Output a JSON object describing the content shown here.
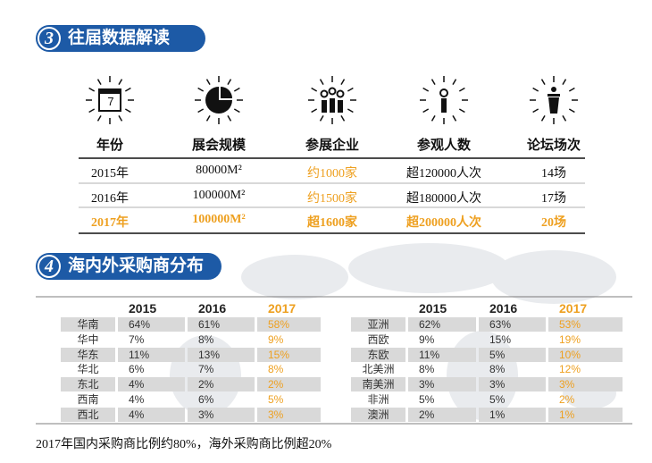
{
  "section3": {
    "number": "3",
    "title": "往届数据解读",
    "icon_day": "7",
    "columns": [
      "年份",
      "展会规模",
      "参展企业",
      "参观人数",
      "论坛场次"
    ],
    "rows": [
      [
        "2015年",
        "80000M²",
        "约1000家",
        "超120000人次",
        "14场"
      ],
      [
        "2016年",
        "100000M²",
        "约1500家",
        "超180000人次",
        "17场"
      ],
      [
        "2017年",
        "100000M²",
        "超1600家",
        "超200000人次",
        "20场"
      ]
    ]
  },
  "section4": {
    "number": "4",
    "title": "海内外采购商分布",
    "domestic": {
      "headers": [
        "2015",
        "2016",
        "2017"
      ],
      "rows": [
        [
          "华南",
          "64%",
          "61%",
          "58%"
        ],
        [
          "华中",
          "7%",
          "8%",
          "9%"
        ],
        [
          "华东",
          "11%",
          "13%",
          "15%"
        ],
        [
          "华北",
          "6%",
          "7%",
          "8%"
        ],
        [
          "东北",
          "4%",
          "2%",
          "2%"
        ],
        [
          "西南",
          "4%",
          "6%",
          "5%"
        ],
        [
          "西北",
          "4%",
          "3%",
          "3%"
        ]
      ]
    },
    "overseas": {
      "headers": [
        "2015",
        "2016",
        "2017"
      ],
      "rows": [
        [
          "亚洲",
          "62%",
          "63%",
          "53%"
        ],
        [
          "西欧",
          "9%",
          "15%",
          "19%"
        ],
        [
          "东欧",
          "11%",
          "5%",
          "10%"
        ],
        [
          "北美洲",
          "8%",
          "8%",
          "12%"
        ],
        [
          "南美洲",
          "3%",
          "3%",
          "3%"
        ],
        [
          "非洲",
          "5%",
          "5%",
          "2%"
        ],
        [
          "澳洲",
          "2%",
          "1%",
          "1%"
        ]
      ]
    }
  },
  "footer": "2017年国内采购商比例约80%，海外采购商比例超20%"
}
